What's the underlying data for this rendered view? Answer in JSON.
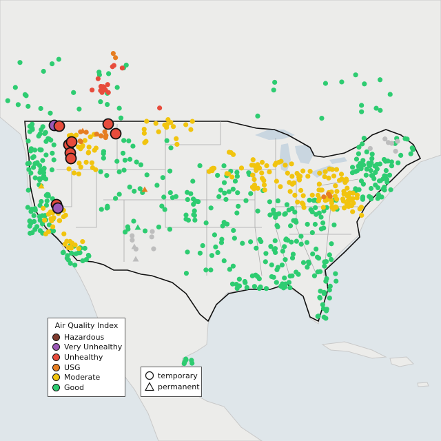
{
  "legend": {
    "title": "Air Quality Index",
    "items": [
      {
        "label": "Hazardous",
        "color": "#7e3b2e"
      },
      {
        "label": "Very Unhealthy",
        "color": "#9b59b6"
      },
      {
        "label": "Unhealthy",
        "color": "#e74c3c"
      },
      {
        "label": "USG",
        "color": "#e67e22"
      },
      {
        "label": "Moderate",
        "color": "#f1c40f"
      },
      {
        "label": "Good",
        "color": "#2ecc71"
      }
    ]
  },
  "monitor_types": [
    {
      "label": "temporary",
      "icon": "circle-icon"
    },
    {
      "label": "permanent",
      "icon": "triangle-icon"
    }
  ],
  "colors": {
    "no_data": "#bdbdbd",
    "land": "#ececea",
    "water": "#c9d6e0"
  }
}
